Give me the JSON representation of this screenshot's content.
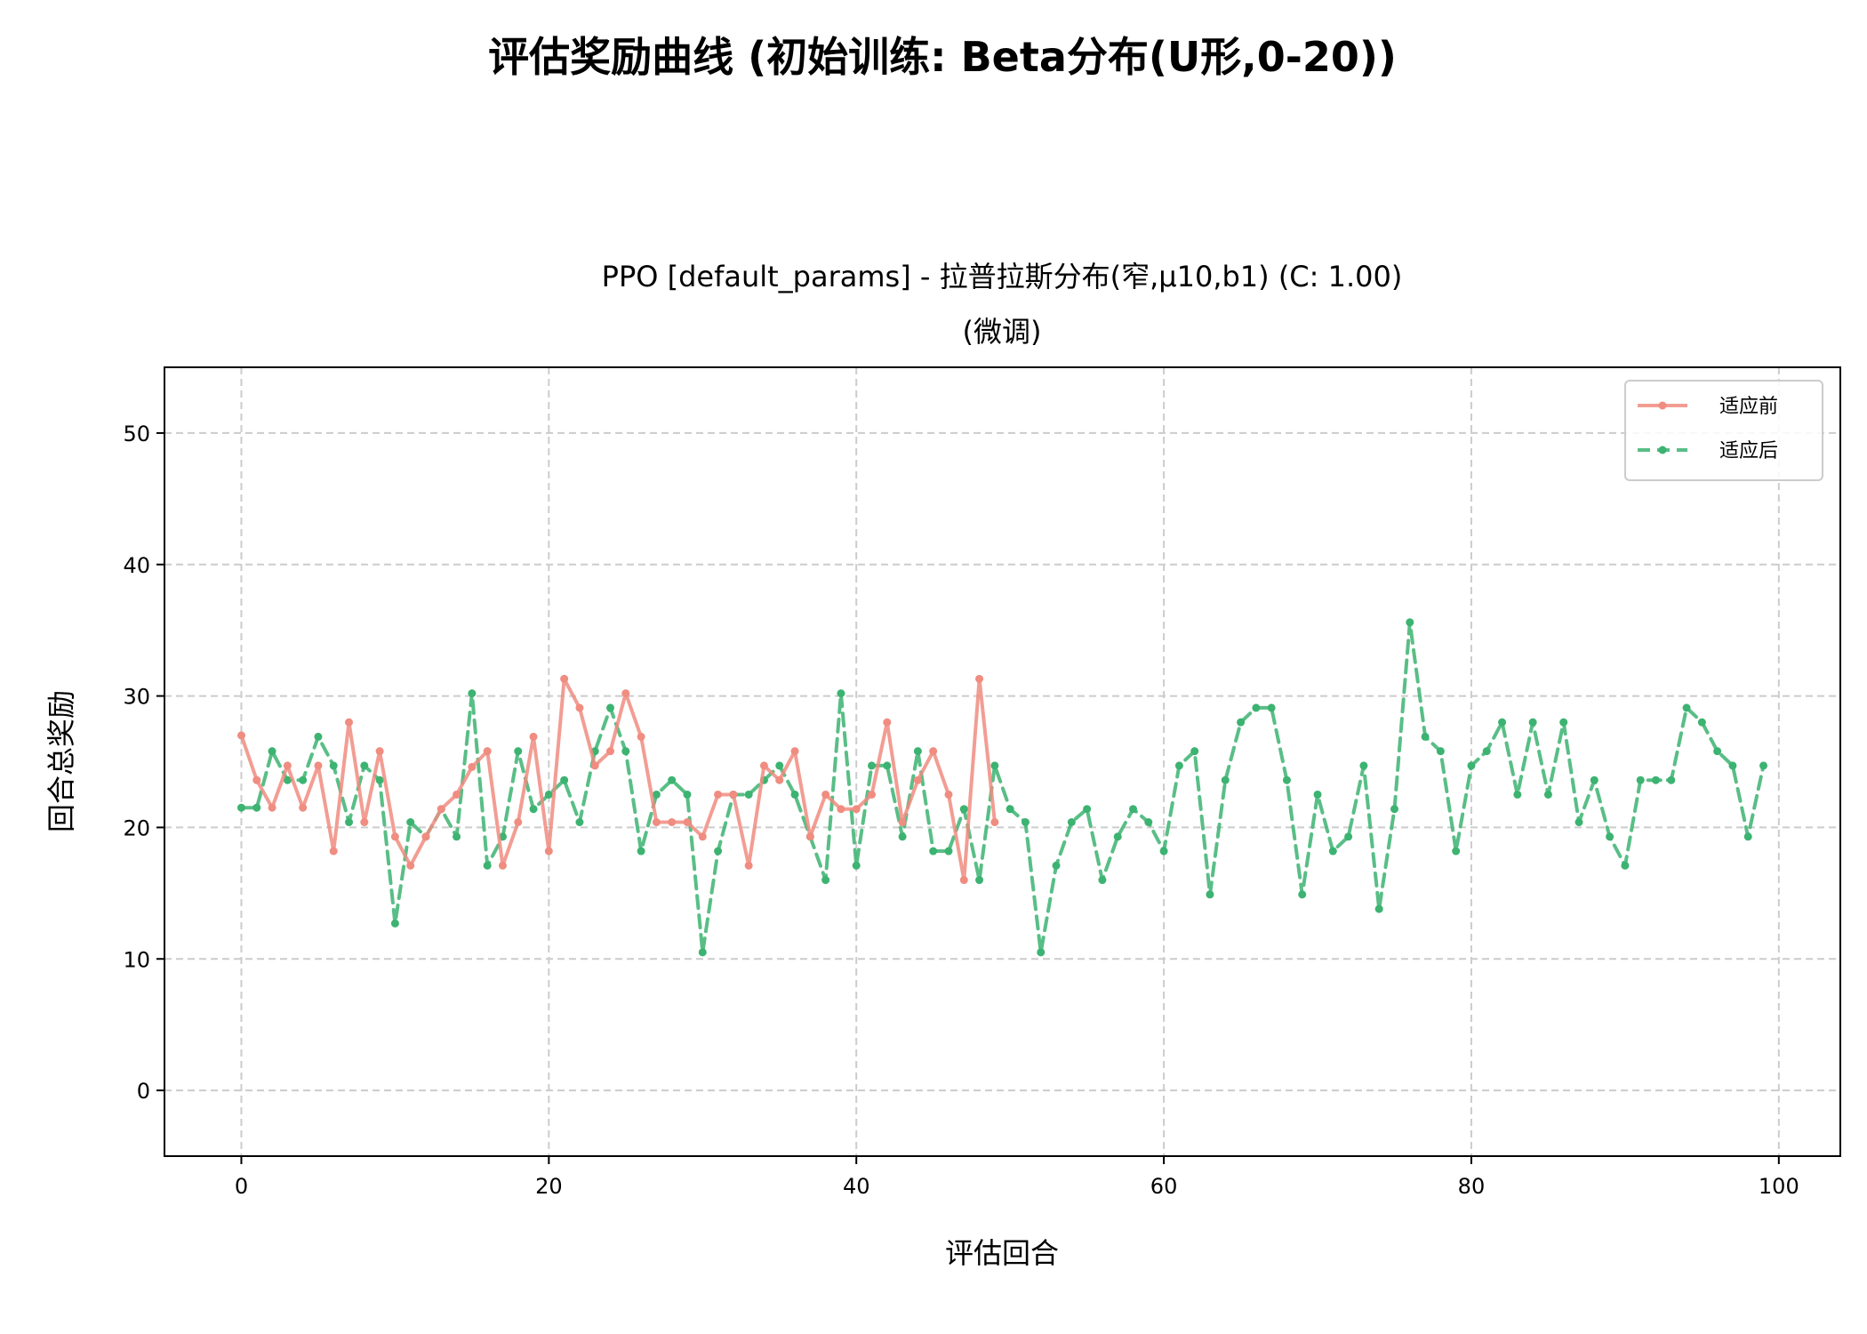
{
  "figure": {
    "suptitle": "评估奖励曲线 (初始训练: Beta分布(U形,0-20))"
  },
  "chart_data": {
    "type": "line",
    "title_line1": "PPO [default_params] - 拉普拉斯分布(窄,μ10,b1) (C: 1.00)",
    "title_line2": "(微调)",
    "xlabel": "评估回合",
    "ylabel": "回合总奖励",
    "xlim": [
      -5,
      104
    ],
    "ylim": [
      -5,
      55
    ],
    "xticks": [
      0,
      20,
      40,
      60,
      80,
      100
    ],
    "yticks": [
      0,
      10,
      20,
      30,
      40,
      50
    ],
    "grid": true,
    "legend_position": "top-right",
    "series": [
      {
        "name": "适应前",
        "color": "#f08c80",
        "style": "solid",
        "x_start": 0,
        "values": [
          27,
          23.6,
          21.5,
          24.7,
          21.5,
          24.7,
          18.2,
          28,
          20.4,
          25.8,
          19.3,
          17.1,
          19.3,
          21.4,
          22.5,
          24.6,
          25.8,
          17.1,
          20.4,
          26.9,
          18.2,
          31.3,
          29.1,
          24.7,
          25.8,
          30.2,
          26.9,
          20.4,
          20.4,
          20.4,
          19.3,
          22.5,
          22.5,
          17.1,
          24.7,
          23.6,
          25.8,
          19.3,
          22.5,
          21.4,
          21.4,
          22.5,
          28,
          20.4,
          23.6,
          25.8,
          22.5,
          16,
          31.3,
          20.4
        ]
      },
      {
        "name": "适应后",
        "color": "#3cb371",
        "style": "dashed",
        "x_start": 0,
        "values": [
          21.5,
          21.5,
          25.8,
          23.6,
          23.6,
          26.9,
          24.7,
          20.4,
          24.7,
          23.6,
          12.7,
          20.4,
          19.3,
          21.4,
          19.3,
          30.2,
          17.1,
          19.3,
          25.8,
          21.4,
          22.5,
          23.6,
          20.4,
          25.8,
          29.1,
          25.8,
          18.2,
          22.5,
          23.6,
          22.5,
          10.5,
          18.2,
          22.5,
          22.5,
          23.6,
          24.7,
          22.5,
          19.3,
          16,
          30.2,
          17.1,
          24.7,
          24.7,
          19.3,
          25.8,
          18.2,
          18.2,
          21.4,
          16,
          24.7,
          21.4,
          20.4,
          10.5,
          17.1,
          20.4,
          21.4,
          16,
          19.3,
          21.4,
          20.4,
          18.2,
          24.7,
          25.8,
          14.9,
          23.6,
          28,
          29.1,
          29.1,
          23.6,
          14.9,
          22.5,
          18.2,
          19.3,
          24.7,
          13.8,
          21.4,
          35.6,
          26.9,
          25.8,
          18.2,
          24.7,
          25.8,
          28,
          22.5,
          28,
          22.5,
          28,
          20.4,
          23.6,
          19.3,
          17.1,
          23.6,
          23.6,
          23.6,
          29.1,
          28,
          25.8,
          24.7,
          19.3,
          24.7
        ]
      }
    ]
  }
}
